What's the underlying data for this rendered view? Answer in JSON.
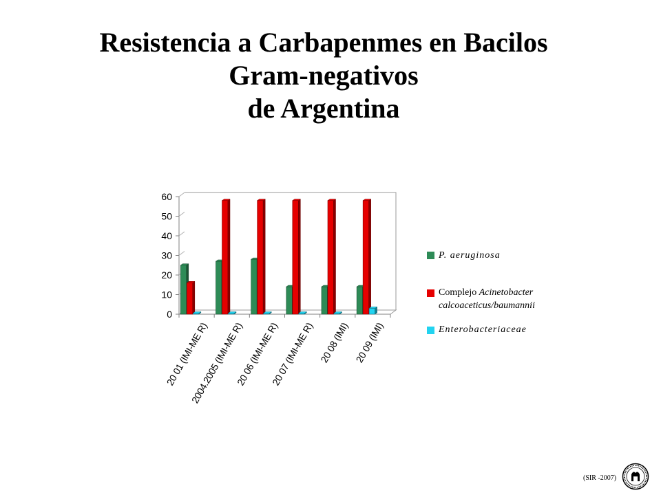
{
  "title": {
    "line1": "Resistencia a Carbapenmes en Bacilos",
    "line2": "Gram-negativos",
    "line3": "de Argentina"
  },
  "chart_data": {
    "type": "bar",
    "categories": [
      "20 01 (IMI-ME R)",
      "2004.2005 (IMI-ME R)",
      "20 06 (IMI-ME R)",
      "20 07 (IMI-ME R)",
      "20 08 (IMI)",
      "20 09 (IMI)"
    ],
    "series": [
      {
        "name": "P. aeruginosa",
        "color": "#2e8b57",
        "values": [
          25,
          27,
          28,
          14,
          14,
          14
        ]
      },
      {
        "name": "Complejo Acinetobacter calcoaceticus/baumannii",
        "color": "#e60000",
        "values": [
          16,
          58,
          58,
          58,
          58,
          58
        ]
      },
      {
        "name": "Enterobacteriaceae",
        "color": "#22d3f0",
        "values": [
          0.5,
          0.5,
          0.5,
          0.5,
          0.5,
          3
        ]
      }
    ],
    "yticks": [
      0,
      10,
      20,
      30,
      40,
      50,
      60
    ],
    "ylim": [
      0,
      60
    ],
    "grid": false,
    "legend_position": "right"
  },
  "legend": {
    "item1": "P. aeruginosa",
    "item2_prefix": "Complejo ",
    "item2_italic": "Acinetobacter",
    "item2_line2": "calcoaceticus/baumannii",
    "item3": "Enterobacteriaceae"
  },
  "source": "(SIR -2007)",
  "seal_icon": "institution-seal-icon"
}
